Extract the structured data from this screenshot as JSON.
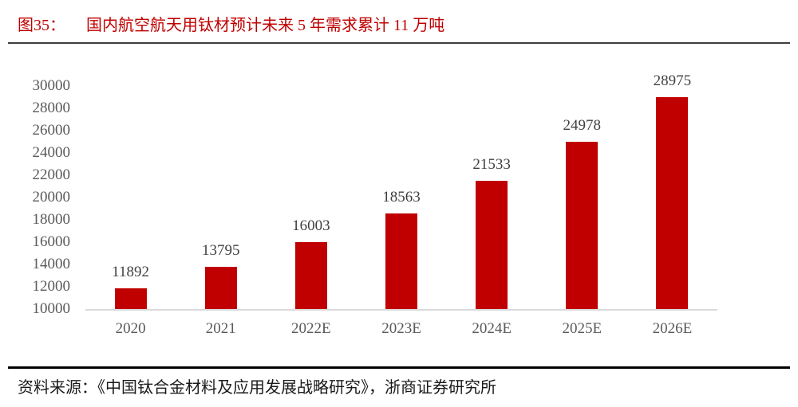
{
  "header": {
    "figure_label": "图35：",
    "title": "国内航空航天用钛材预计未来 5 年需求累计 11 万吨"
  },
  "chart_data": {
    "type": "bar",
    "title": "国内航空航天用钛材预计未来 5 年需求累计 11 万吨",
    "categories": [
      "2020",
      "2021",
      "2022E",
      "2023E",
      "2024E",
      "2025E",
      "2026E"
    ],
    "values": [
      11892,
      13795,
      16003,
      18563,
      21533,
      24978,
      28975
    ],
    "value_labels": [
      "11892",
      "13795",
      "16003",
      "18563",
      "21533",
      "24978",
      "28975"
    ],
    "xlabel": "",
    "ylabel": "",
    "ylim": [
      10000,
      30000
    ],
    "ytick_step": 2000,
    "yticks": [
      10000,
      12000,
      14000,
      16000,
      18000,
      20000,
      22000,
      24000,
      26000,
      28000,
      30000
    ],
    "grid": false,
    "legend": false
  },
  "footer": {
    "source": "资料来源：《中国钛合金材料及应用发展战略研究》，浙商证券研究所"
  },
  "colors": {
    "title_red": "#C00000",
    "bar_red": "#C00000",
    "axis_label_gray": "#595959",
    "value_label_gray": "#3F3F3F",
    "baseline_gray": "#D9D9D9",
    "header_rule": "#3D3D3D",
    "footer_rule": "#000000",
    "footer_text": "#1A1A1A"
  }
}
